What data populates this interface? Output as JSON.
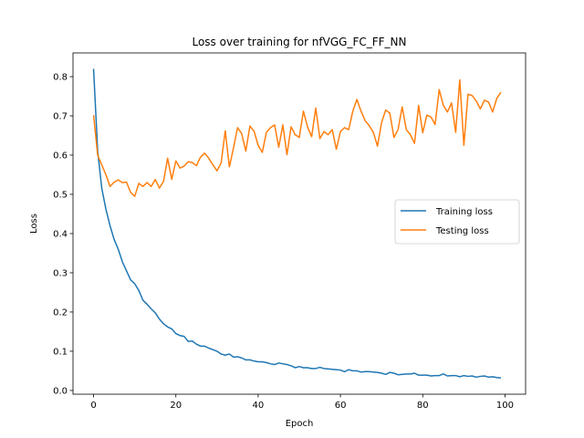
{
  "chart_data": {
    "type": "line",
    "title": "Loss over training for nfVGG_FC_FF_NN",
    "xlabel": "Epoch",
    "ylabel": "Loss",
    "xlim": [
      -5,
      105
    ],
    "ylim": [
      -0.0095,
      0.8605
    ],
    "xticks": [
      0,
      20,
      40,
      60,
      80,
      100
    ],
    "yticks": [
      0.0,
      0.1,
      0.2,
      0.3,
      0.4,
      0.5,
      0.6,
      0.7,
      0.8
    ],
    "ytick_labels": [
      "0.0",
      "0.1",
      "0.2",
      "0.3",
      "0.4",
      "0.5",
      "0.6",
      "0.7",
      "0.8"
    ],
    "grid": false,
    "legend_position": "center-right",
    "series": [
      {
        "name": "Training loss",
        "color": "#1f77b4",
        "values": [
          0.82,
          0.61,
          0.515,
          0.462,
          0.42,
          0.385,
          0.36,
          0.328,
          0.305,
          0.282,
          0.272,
          0.255,
          0.23,
          0.22,
          0.208,
          0.198,
          0.182,
          0.17,
          0.162,
          0.157,
          0.145,
          0.14,
          0.138,
          0.125,
          0.126,
          0.118,
          0.113,
          0.113,
          0.108,
          0.104,
          0.1,
          0.093,
          0.09,
          0.093,
          0.085,
          0.086,
          0.083,
          0.078,
          0.078,
          0.075,
          0.073,
          0.073,
          0.071,
          0.068,
          0.066,
          0.07,
          0.068,
          0.066,
          0.063,
          0.058,
          0.061,
          0.058,
          0.058,
          0.056,
          0.056,
          0.059,
          0.056,
          0.055,
          0.054,
          0.053,
          0.052,
          0.048,
          0.053,
          0.05,
          0.05,
          0.047,
          0.048,
          0.048,
          0.047,
          0.046,
          0.044,
          0.041,
          0.046,
          0.044,
          0.04,
          0.041,
          0.042,
          0.042,
          0.044,
          0.039,
          0.039,
          0.039,
          0.037,
          0.038,
          0.038,
          0.042,
          0.037,
          0.038,
          0.038,
          0.035,
          0.038,
          0.036,
          0.037,
          0.034,
          0.036,
          0.037,
          0.034,
          0.035,
          0.033,
          0.032
        ]
      },
      {
        "name": "Testing loss",
        "color": "#ff7f0e",
        "values": [
          0.702,
          0.6,
          0.575,
          0.55,
          0.52,
          0.531,
          0.537,
          0.53,
          0.531,
          0.505,
          0.495,
          0.528,
          0.52,
          0.53,
          0.52,
          0.538,
          0.516,
          0.533,
          0.592,
          0.538,
          0.585,
          0.567,
          0.572,
          0.583,
          0.581,
          0.573,
          0.595,
          0.605,
          0.592,
          0.575,
          0.56,
          0.58,
          0.662,
          0.57,
          0.618,
          0.67,
          0.655,
          0.61,
          0.674,
          0.661,
          0.625,
          0.607,
          0.658,
          0.67,
          0.677,
          0.62,
          0.677,
          0.601,
          0.672,
          0.652,
          0.645,
          0.712,
          0.672,
          0.647,
          0.72,
          0.642,
          0.66,
          0.652,
          0.665,
          0.615,
          0.66,
          0.67,
          0.665,
          0.712,
          0.742,
          0.712,
          0.688,
          0.675,
          0.658,
          0.623,
          0.683,
          0.715,
          0.707,
          0.645,
          0.665,
          0.723,
          0.665,
          0.652,
          0.63,
          0.727,
          0.657,
          0.702,
          0.697,
          0.678,
          0.767,
          0.727,
          0.71,
          0.733,
          0.658,
          0.792,
          0.625,
          0.755,
          0.752,
          0.738,
          0.718,
          0.74,
          0.735,
          0.71,
          0.745,
          0.76
        ]
      }
    ]
  }
}
